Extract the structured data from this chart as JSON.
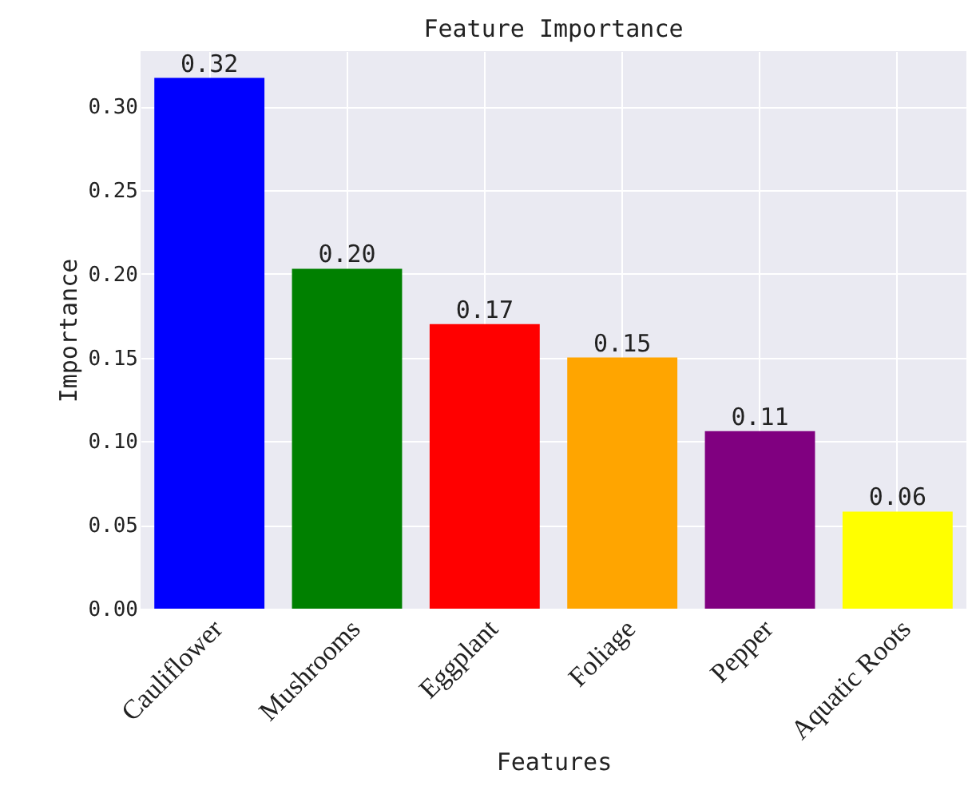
{
  "chart_data": {
    "type": "bar",
    "title": "Feature Importance",
    "xlabel": "Features",
    "ylabel": "Importance",
    "categories": [
      "Cauliflower",
      "Mushrooms",
      "Eggplant",
      "Foliage",
      "Pepper",
      "Aquatic Roots"
    ],
    "values": [
      0.317,
      0.203,
      0.17,
      0.15,
      0.106,
      0.058
    ],
    "value_labels": [
      "0.32",
      "0.20",
      "0.17",
      "0.15",
      "0.11",
      "0.06"
    ],
    "colors": [
      "#0000ff",
      "#008000",
      "#ff0000",
      "#ffa500",
      "#800080",
      "#ffff00"
    ],
    "ylim": [
      0,
      0.333
    ],
    "yticks": [
      {
        "value": 0,
        "label": "0.00"
      },
      {
        "value": 0.05,
        "label": "0.05"
      },
      {
        "value": 0.1,
        "label": "0.10"
      },
      {
        "value": 0.15,
        "label": "0.15"
      },
      {
        "value": 0.2,
        "label": "0.20"
      },
      {
        "value": 0.25,
        "label": "0.25"
      },
      {
        "value": 0.3,
        "label": "0.30"
      }
    ],
    "grid": true
  }
}
